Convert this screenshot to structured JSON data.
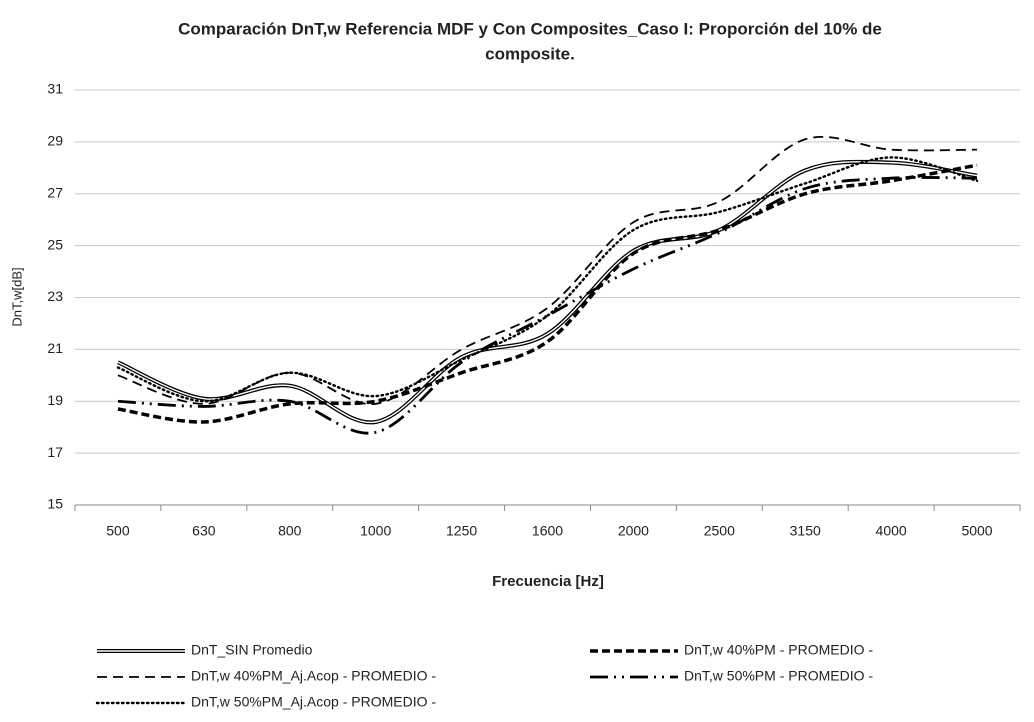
{
  "chart_data": {
    "type": "line",
    "title": [
      "Comparación DnT,w  Referencia MDF y Con Composites_Caso I: Proporción del 10% de",
      "composite."
    ],
    "x_label": "Frecuencia [Hz]",
    "y_label": "DnT,w[dB]",
    "categories": [
      "500",
      "630",
      "800",
      "1000",
      "1250",
      "1600",
      "2000",
      "2500",
      "3150",
      "4000",
      "5000"
    ],
    "ylim": [
      15,
      31
    ],
    "yticks": [
      15,
      17,
      19,
      21,
      23,
      25,
      27,
      29,
      31
    ],
    "grid": true,
    "legend": "bottom",
    "series": [
      {
        "name": "DnT_SIN Promedio",
        "color": "#000000",
        "style": "double",
        "values": [
          20.5,
          19.1,
          19.6,
          18.2,
          20.7,
          21.6,
          24.8,
          25.6,
          27.9,
          28.2,
          27.7
        ]
      },
      {
        "name": "DnT,w 40%PM - PROMEDIO -",
        "color": "#000000",
        "style": "bold-dash",
        "values": [
          18.7,
          18.2,
          18.9,
          19.0,
          20.1,
          21.3,
          24.7,
          25.6,
          27.0,
          27.5,
          28.1
        ]
      },
      {
        "name": "DnT,w 40%PM_Aj.Acop - PROMEDIO -",
        "color": "#000000",
        "style": "dash",
        "values": [
          20.0,
          18.9,
          20.1,
          18.9,
          21.0,
          22.6,
          25.9,
          26.7,
          29.1,
          28.7,
          28.7
        ]
      },
      {
        "name": "DnT,w 50%PM  - PROMEDIO -",
        "color": "#000000",
        "style": "long-dash-dot-dot",
        "values": [
          19.0,
          18.8,
          19.0,
          17.8,
          20.5,
          22.3,
          24.1,
          25.5,
          27.2,
          27.6,
          27.6
        ]
      },
      {
        "name": "DnT,w 50%PM_Aj.Acop  - PROMEDIO -",
        "color": "#000000",
        "style": "dot",
        "values": [
          20.3,
          19.0,
          20.1,
          19.2,
          20.6,
          22.3,
          25.6,
          26.3,
          27.4,
          28.4,
          27.5
        ]
      }
    ]
  }
}
